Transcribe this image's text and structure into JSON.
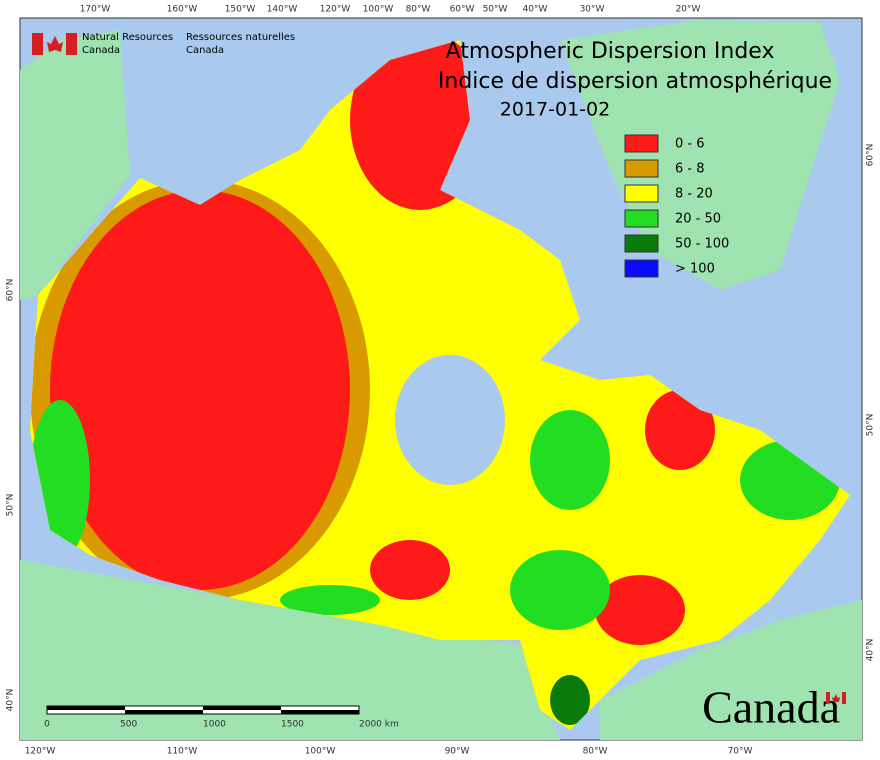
{
  "logo": {
    "en": [
      "Natural Resources",
      "Canada"
    ],
    "fr": [
      "Ressources naturelles",
      "Canada"
    ]
  },
  "title": [
    "Atmospheric Dispersion Index",
    "Indice de dispersion atmosphérique"
  ],
  "date": "2017-01-02",
  "legend": [
    {
      "label": "0 - 6",
      "color": "#ff1a1a"
    },
    {
      "label": "6 - 8",
      "color": "#d99a00"
    },
    {
      "label": "8 - 20",
      "color": "#ffff00"
    },
    {
      "label": "20 - 50",
      "color": "#22dd22"
    },
    {
      "label": "50 - 100",
      "color": "#0a7a0a"
    },
    {
      "label": "> 100",
      "color": "#0a0aff"
    }
  ],
  "lon_top": [
    "170°W",
    "160°W",
    "150°W",
    "140°W",
    "120°W",
    "100°W",
    "80°W",
    "60°W",
    "50°W",
    "40°W",
    "30°W",
    "20°W"
  ],
  "lon_bottom": [
    "120°W",
    "110°W",
    "100°W",
    "90°W",
    "80°W",
    "70°W"
  ],
  "lat_left": [
    "60°N",
    "50°N",
    "40°N"
  ],
  "lat_right": [
    "60°N",
    "50°N",
    "40°N"
  ],
  "scale": [
    "0",
    "500",
    "1000",
    "1500",
    "2000 km"
  ],
  "wordmark": "Canada"
}
